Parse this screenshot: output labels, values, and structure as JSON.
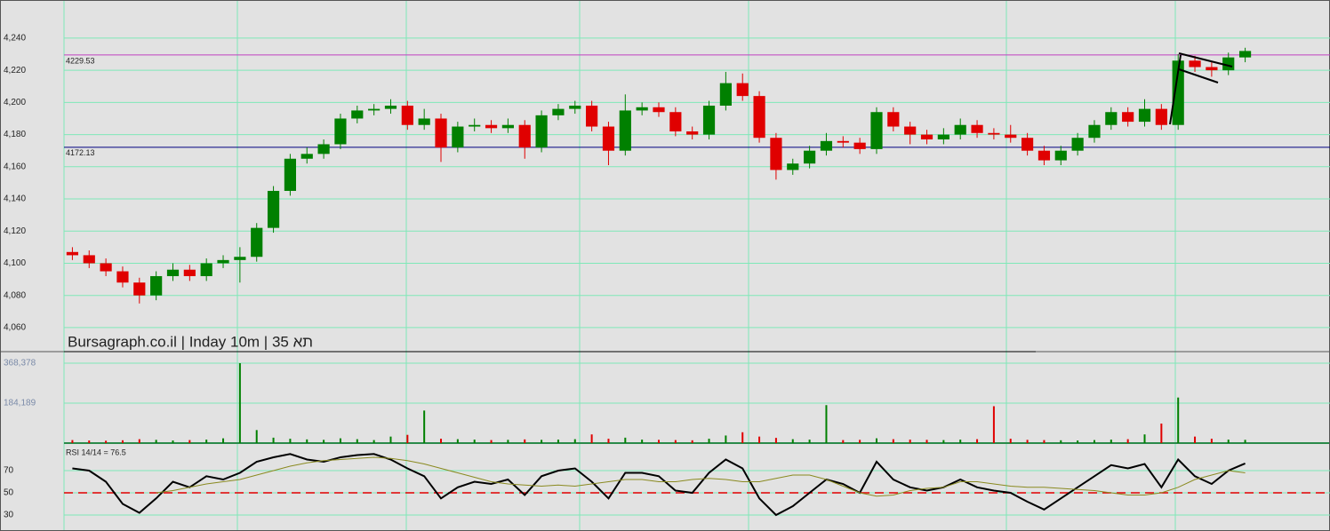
{
  "chart_data": [
    {
      "type": "candlestick",
      "title": "Bursagraph.co.il | Inday 10m | תא 35",
      "ylim": [
        4045.6,
        4263.7
      ],
      "yticks": [
        {
          "value": 4060,
          "label": "4,060"
        },
        {
          "value": 4080,
          "label": "4,080"
        },
        {
          "value": 4100,
          "label": "4,100"
        },
        {
          "value": 4120,
          "label": "4,120"
        },
        {
          "value": 4140,
          "label": "4,140"
        },
        {
          "value": 4160,
          "label": "4,160"
        },
        {
          "value": 4180,
          "label": "4,180"
        },
        {
          "value": 4200,
          "label": "4,200"
        },
        {
          "value": 4220,
          "label": "4,220"
        },
        {
          "value": 4240,
          "label": "4,240"
        }
      ],
      "grid": true,
      "up_color": "#008000",
      "down_color": "#e00000",
      "levels": [
        {
          "value": 4229.53,
          "color": "#c040c0"
        },
        {
          "value": 4172.13,
          "color": "#000080"
        }
      ],
      "open": [
        4107,
        4105,
        4100,
        4095,
        4088,
        4080,
        4092,
        4096,
        4092,
        4100,
        4102,
        4104,
        4122,
        4145,
        4165,
        4168,
        4174,
        4190,
        4195,
        4196,
        4198,
        4186,
        4190,
        4172,
        4185,
        4186,
        4184,
        4186,
        4172,
        4192,
        4196,
        4198,
        4185,
        4170,
        4195,
        4197,
        4194,
        4182,
        4180,
        4198,
        4212,
        4204,
        4178,
        4158,
        4162,
        4170,
        4176,
        4175,
        4171,
        4194,
        4185,
        4180,
        4177,
        4180,
        4186,
        4181,
        4180,
        4178,
        4170,
        4164,
        4170,
        4178,
        4186,
        4194,
        4188,
        4196,
        4186,
        4226,
        4222,
        4220,
        4228
      ],
      "high": [
        4110,
        4108,
        4103,
        4098,
        4091,
        4095,
        4100,
        4099,
        4103,
        4105,
        4110,
        4125,
        4148,
        4168,
        4172,
        4177,
        4193,
        4198,
        4199,
        4202,
        4201,
        4196,
        4193,
        4188,
        4190,
        4189,
        4190,
        4189,
        4195,
        4199,
        4201,
        4201,
        4188,
        4205,
        4200,
        4200,
        4197,
        4185,
        4201,
        4219,
        4218,
        4207,
        4181,
        4165,
        4173,
        4181,
        4179,
        4178,
        4197,
        4197,
        4188,
        4183,
        4184,
        4190,
        4189,
        4184,
        4186,
        4181,
        4173,
        4173,
        4181,
        4189,
        4197,
        4197,
        4202,
        4199,
        4230,
        4229,
        4225,
        4231,
        4234
      ],
      "low": [
        4102,
        4097,
        4092,
        4085,
        4075,
        4077,
        4089,
        4089,
        4089,
        4097,
        4088,
        4101,
        4119,
        4142,
        4162,
        4165,
        4171,
        4187,
        4192,
        4193,
        4183,
        4183,
        4163,
        4169,
        4182,
        4181,
        4181,
        4165,
        4169,
        4189,
        4193,
        4182,
        4161,
        4167,
        4192,
        4191,
        4179,
        4177,
        4177,
        4195,
        4201,
        4175,
        4152,
        4155,
        4159,
        4167,
        4172,
        4168,
        4168,
        4182,
        4174,
        4174,
        4174,
        4177,
        4178,
        4177,
        4175,
        4167,
        4161,
        4161,
        4167,
        4175,
        4183,
        4185,
        4185,
        4183,
        4183,
        4219,
        4216,
        4217,
        4225
      ],
      "close": [
        4105,
        4100,
        4095,
        4088,
        4080,
        4092,
        4096,
        4092,
        4100,
        4102,
        4104,
        4122,
        4145,
        4165,
        4168,
        4174,
        4190,
        4195,
        4196,
        4198,
        4186,
        4190,
        4172,
        4185,
        4186,
        4184,
        4186,
        4172,
        4192,
        4196,
        4198,
        4185,
        4170,
        4195,
        4197,
        4194,
        4182,
        4180,
        4198,
        4212,
        4204,
        4178,
        4158,
        4162,
        4170,
        4176,
        4175,
        4171,
        4194,
        4185,
        4180,
        4177,
        4180,
        4186,
        4181,
        4180,
        4178,
        4170,
        4164,
        4170,
        4178,
        4186,
        4194,
        4188,
        4196,
        4186,
        4226,
        4222,
        4220,
        4228,
        4232
      ]
    },
    {
      "type": "bar",
      "ylim": [
        0,
        417500
      ],
      "yticks": [
        {
          "value": 184189,
          "label": "184,189"
        },
        {
          "value": 368378,
          "label": "368,378"
        }
      ],
      "values": [
        14000,
        12000,
        11000,
        13000,
        18000,
        15000,
        12000,
        14000,
        16000,
        22000,
        368378,
        60000,
        25000,
        20000,
        17000,
        15000,
        22000,
        18000,
        14000,
        30000,
        38000,
        150000,
        20000,
        18000,
        16000,
        14000,
        15000,
        17000,
        15000,
        16000,
        18000,
        40000,
        20000,
        25000,
        16000,
        15000,
        14000,
        13000,
        20000,
        35000,
        50000,
        30000,
        24000,
        18000,
        16000,
        175000,
        14000,
        15000,
        22000,
        18000,
        16000,
        15000,
        14000,
        16000,
        18000,
        170000,
        20000,
        15000,
        14000,
        13000,
        12000,
        14000,
        16000,
        18000,
        40000,
        90000,
        210000,
        30000,
        20000,
        16000,
        15000
      ]
    },
    {
      "type": "line",
      "label": "RSI 14/14 = 76.5",
      "ylim": [
        15.6,
        93.2
      ],
      "yticks": [
        30,
        50,
        70
      ],
      "ref_line": 50,
      "ref_color": "#e00000",
      "series": [
        {
          "color": "#000000",
          "values": [
            72,
            70,
            60,
            40,
            32,
            45,
            60,
            55,
            65,
            62,
            68,
            78,
            82,
            85,
            80,
            78,
            82,
            84,
            85,
            80,
            72,
            65,
            45,
            55,
            60,
            58,
            62,
            48,
            65,
            70,
            72,
            60,
            45,
            68,
            68,
            65,
            52,
            50,
            68,
            80,
            72,
            45,
            30,
            38,
            50,
            62,
            58,
            50,
            78,
            62,
            55,
            52,
            55,
            62,
            55,
            52,
            50,
            42,
            35,
            45,
            55,
            65,
            75,
            72,
            76,
            55,
            80,
            65,
            58,
            70,
            76.5
          ]
        },
        {
          "color": "#8a8a20",
          "values": [
            null,
            null,
            null,
            null,
            null,
            50,
            52,
            55,
            58,
            60,
            62,
            66,
            70,
            74,
            77,
            79,
            80,
            81,
            82,
            81,
            79,
            76,
            72,
            68,
            64,
            60,
            58,
            57,
            56,
            57,
            56,
            58,
            60,
            62,
            62,
            60,
            60,
            62,
            63,
            62,
            60,
            60,
            63,
            66,
            66,
            62,
            56,
            50,
            47,
            48,
            52,
            54,
            55,
            60,
            60,
            58,
            56,
            55,
            55,
            54,
            53,
            52,
            50,
            48,
            48,
            50,
            55,
            62,
            66,
            70,
            68
          ]
        }
      ]
    }
  ]
}
